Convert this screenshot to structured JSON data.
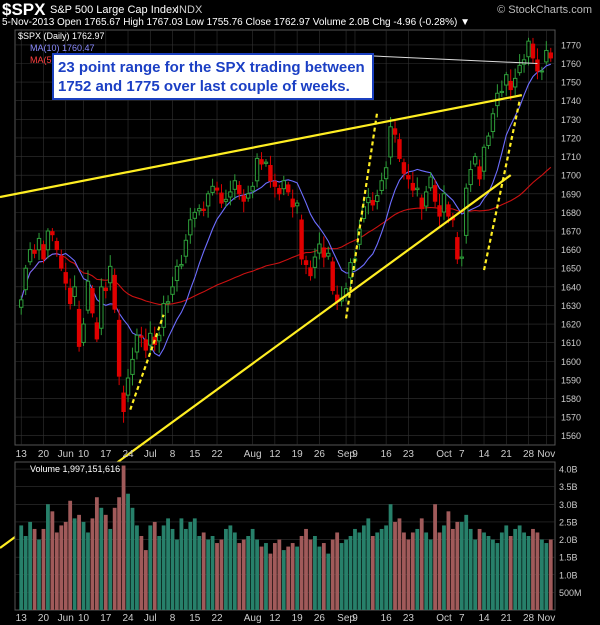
{
  "header": {
    "symbol": "$SPX",
    "name": "S&P 500 Large Cap Index",
    "exchange": "INDX",
    "brand": "© StockCharts.com",
    "ohlc_line": "5-Nov-2013  Open 1765.67  High 1767.03  Low 1755.76  Close 1762.97  Volume 2.0B  Chg -4.96 (-0.28%) ▼"
  },
  "legend": {
    "price": "$SPX (Daily) 1762.97",
    "ma10": "MA(10) 1760.47",
    "ma50": "MA(5",
    "volume": "Volume 1,997,151,616"
  },
  "annotation": {
    "text_line1": "23 point range for the SPX trading between",
    "text_line2": "1752 and 1775 over last couple of weeks."
  },
  "colors": {
    "up": "#2e9e3a",
    "down": "#e00000",
    "ma10": "#6d6dff",
    "ma50": "#cc1111",
    "trendline": "#ffee22",
    "grid": "#333333",
    "vol_up": "#27806a",
    "vol_down": "#a05a5a"
  },
  "chart_data": [
    {
      "type": "candlestick",
      "title": "$SPX (Daily) 1762.97",
      "ylim": [
        1555,
        1778
      ],
      "y_ticks": [
        1560,
        1570,
        1580,
        1590,
        1600,
        1610,
        1620,
        1630,
        1640,
        1650,
        1660,
        1670,
        1680,
        1690,
        1700,
        1710,
        1720,
        1730,
        1740,
        1750,
        1760,
        1770
      ],
      "x_tick_labels": [
        {
          "i": 0,
          "label": "13"
        },
        {
          "i": 5,
          "label": "20"
        },
        {
          "i": 10,
          "label": "Jun"
        },
        {
          "i": 14,
          "label": "10"
        },
        {
          "i": 19,
          "label": "17"
        },
        {
          "i": 24,
          "label": "24"
        },
        {
          "i": 29,
          "label": "Jul"
        },
        {
          "i": 34,
          "label": "8"
        },
        {
          "i": 39,
          "label": "15"
        },
        {
          "i": 44,
          "label": "22"
        },
        {
          "i": 52,
          "label": "Aug"
        },
        {
          "i": 57,
          "label": "12"
        },
        {
          "i": 62,
          "label": "19"
        },
        {
          "i": 67,
          "label": "26"
        },
        {
          "i": 73,
          "label": "Sep"
        },
        {
          "i": 75,
          "label": "9"
        },
        {
          "i": 82,
          "label": "16"
        },
        {
          "i": 87,
          "label": "23"
        },
        {
          "i": 95,
          "label": "Oct"
        },
        {
          "i": 99,
          "label": "7"
        },
        {
          "i": 104,
          "label": "14"
        },
        {
          "i": 109,
          "label": "21"
        },
        {
          "i": 114,
          "label": "28"
        },
        {
          "i": 118,
          "label": "Nov"
        }
      ],
      "close": [
        1633,
        1650,
        1660,
        1658,
        1666,
        1655,
        1670,
        1668,
        1660,
        1650,
        1642,
        1631,
        1640,
        1608,
        1620,
        1643,
        1626,
        1612,
        1640,
        1638,
        1651,
        1628,
        1592,
        1573,
        1591,
        1601,
        1614,
        1613,
        1606,
        1615,
        1609,
        1614,
        1631,
        1632,
        1640,
        1651,
        1652,
        1665,
        1676,
        1680,
        1682,
        1681,
        1690,
        1694,
        1692,
        1685,
        1687,
        1691,
        1697,
        1690,
        1686,
        1690,
        1694,
        1709,
        1706,
        1707,
        1697,
        1694,
        1690,
        1697,
        1691,
        1683,
        1685,
        1655,
        1652,
        1646,
        1656,
        1663,
        1656,
        1658,
        1638,
        1632,
        1634,
        1639,
        1653,
        1655,
        1671,
        1683,
        1688,
        1684,
        1689,
        1697,
        1704,
        1726,
        1722,
        1709,
        1701,
        1698,
        1692,
        1693,
        1682,
        1691,
        1699,
        1686,
        1678,
        1690,
        1678,
        1676,
        1655,
        1656,
        1693,
        1703,
        1710,
        1698,
        1715,
        1721,
        1733,
        1744,
        1745,
        1754,
        1746,
        1752,
        1759,
        1762,
        1772,
        1763,
        1756,
        1756,
        1767,
        1763
      ],
      "ma10_final": 1760.47
    },
    {
      "type": "bar",
      "title": "Volume 1,997,151,616",
      "ylim": [
        0,
        4.2
      ],
      "y_tick_labels": [
        {
          "v": 0.5,
          "label": "500M"
        },
        {
          "v": 1.0,
          "label": "1.0B"
        },
        {
          "v": 1.5,
          "label": "1.5B"
        },
        {
          "v": 2.0,
          "label": "2.0B"
        },
        {
          "v": 2.5,
          "label": "2.5B"
        },
        {
          "v": 3.0,
          "label": "3.0B"
        },
        {
          "v": 3.5,
          "label": "3.5B"
        },
        {
          "v": 4.0,
          "label": "4.0B"
        }
      ],
      "values": [
        2.4,
        2.1,
        2.5,
        2.3,
        2.0,
        2.3,
        3.0,
        2.8,
        2.2,
        2.4,
        2.5,
        3.1,
        2.6,
        2.7,
        2.5,
        2.2,
        2.6,
        3.2,
        2.9,
        2.7,
        2.3,
        2.9,
        3.2,
        4.1,
        3.3,
        2.9,
        2.4,
        2.1,
        1.7,
        2.4,
        2.5,
        2.1,
        2.4,
        2.6,
        2.3,
        2.0,
        2.6,
        2.3,
        2.5,
        2.6,
        2.1,
        2.2,
        2.0,
        2.1,
        1.9,
        2.0,
        2.3,
        2.4,
        2.2,
        1.9,
        2.0,
        2.1,
        2.3,
        2.0,
        1.8,
        1.9,
        1.6,
        1.9,
        2.0,
        1.7,
        1.8,
        1.9,
        1.8,
        2.1,
        2.3,
        2.0,
        2.1,
        1.8,
        1.9,
        1.6,
        2.0,
        2.2,
        1.9,
        2.0,
        2.1,
        2.3,
        2.2,
        2.4,
        2.6,
        2.1,
        2.2,
        2.3,
        2.4,
        3.0,
        2.5,
        2.6,
        2.2,
        2.0,
        2.2,
        2.3,
        2.6,
        2.2,
        2.0,
        3.0,
        2.2,
        2.4,
        2.8,
        2.3,
        2.5,
        2.5,
        2.7,
        2.3,
        2.0,
        2.3,
        2.2,
        2.1,
        2.0,
        1.9,
        2.2,
        2.4,
        2.1,
        2.3,
        2.4,
        2.2,
        2.1,
        2.3,
        2.2,
        2.0,
        1.9,
        2.0
      ]
    }
  ]
}
